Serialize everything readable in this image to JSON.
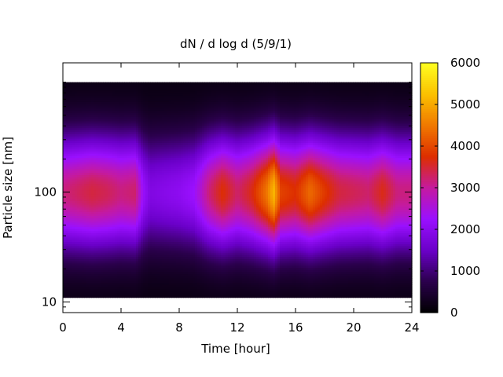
{
  "chart_data": {
    "type": "heatmap",
    "title": "dN / d log d (5/9/1)",
    "xlabel": "Time [hour]",
    "ylabel": "Particle size [nm]",
    "x_ticks": [
      "0",
      "4",
      "8",
      "12",
      "16",
      "20",
      "24"
    ],
    "x_tick_values": [
      0,
      4,
      8,
      12,
      16,
      20,
      24
    ],
    "xlim": [
      0,
      24
    ],
    "y_scale": "log",
    "ylim": [
      8,
      1500
    ],
    "y_ticks": [
      "10",
      "100"
    ],
    "y_tick_values": [
      10,
      100
    ],
    "data_size_range_nm": [
      11,
      1000
    ],
    "colorbar": {
      "ticks": [
        "0",
        "1000",
        "2000",
        "3000",
        "4000",
        "5000",
        "6000"
      ],
      "tick_values": [
        0,
        1000,
        2000,
        3000,
        4000,
        5000,
        6000
      ],
      "range": [
        0,
        6000
      ],
      "palette": [
        "#000000",
        "#2a004b",
        "#6a00c8",
        "#9a10ff",
        "#c41aa0",
        "#dd2e00",
        "#f07800",
        "#fbc000",
        "#ffff20"
      ]
    },
    "peak_diameter_nm": 100,
    "peak_concentration_by_hour": [
      {
        "hour": 0,
        "value": 3000
      },
      {
        "hour": 1,
        "value": 3150
      },
      {
        "hour": 2,
        "value": 3300
      },
      {
        "hour": 3,
        "value": 3200
      },
      {
        "hour": 4,
        "value": 3000
      },
      {
        "hour": 5,
        "value": 3100
      },
      {
        "hour": 5.5,
        "value": 2100
      },
      {
        "hour": 6,
        "value": 1700
      },
      {
        "hour": 7,
        "value": 1800
      },
      {
        "hour": 8,
        "value": 1900
      },
      {
        "hour": 9,
        "value": 2100
      },
      {
        "hour": 9.5,
        "value": 2500
      },
      {
        "hour": 10,
        "value": 3000
      },
      {
        "hour": 11,
        "value": 3600
      },
      {
        "hour": 12,
        "value": 3100
      },
      {
        "hour": 13,
        "value": 3500
      },
      {
        "hour": 14,
        "value": 4300
      },
      {
        "hour": 14.5,
        "value": 5000
      },
      {
        "hour": 15,
        "value": 3800
      },
      {
        "hour": 16,
        "value": 3600
      },
      {
        "hour": 17,
        "value": 4200
      },
      {
        "hour": 18,
        "value": 3700
      },
      {
        "hour": 19,
        "value": 3300
      },
      {
        "hour": 20,
        "value": 3200
      },
      {
        "hour": 21,
        "value": 3100
      },
      {
        "hour": 22,
        "value": 3500
      },
      {
        "hour": 23,
        "value": 3000
      },
      {
        "hour": 24,
        "value": 3000
      }
    ]
  }
}
